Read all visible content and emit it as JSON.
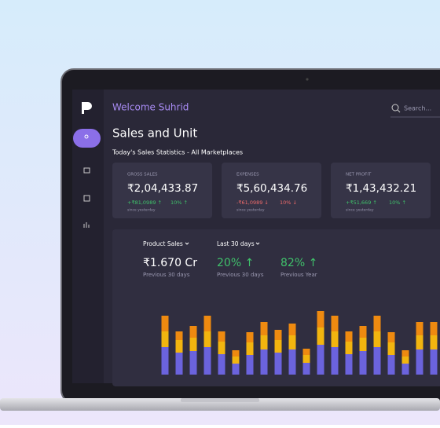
{
  "header": {
    "welcome": "Welcome Suhrid",
    "search_placeholder": "Search..."
  },
  "page": {
    "title": "Sales and Unit",
    "subtitle": "Today's Sales Statistics - All Marketplaces"
  },
  "cards": [
    {
      "label": "GROSS SALES",
      "value": "₹2,04,433.87",
      "change": "+₹81,0989 ↑",
      "percent": "10% ↑",
      "note": "since yesterday"
    },
    {
      "label": "EXPENSES",
      "value": "₹5,60,434.76",
      "change": "-₹61,0989 ↓",
      "percent": "10% ↓",
      "note": "since yesterday"
    },
    {
      "label": "NET PROFIT",
      "value": "₹1,43,432.21",
      "change": "+₹51,669 ↑",
      "percent": "10% ↑",
      "note": "since yesterday"
    }
  ],
  "summary": {
    "filters": [
      "Product Sales",
      "Last 30 days"
    ],
    "stats": [
      {
        "value": "₹1.670 Cr",
        "caption": "Previous 30 days"
      },
      {
        "value": "20% ↑",
        "caption": "Previous 30 days"
      },
      {
        "value": "82% ↑",
        "caption": "Previous Year"
      }
    ]
  },
  "chart_data": {
    "type": "bar",
    "stacked": true,
    "categories": [
      null,
      null,
      null,
      null,
      null,
      null,
      null,
      null,
      null,
      null,
      null,
      null,
      null,
      null,
      null,
      null,
      null,
      null,
      null,
      null
    ],
    "series": [
      {
        "color": "#6b63dd",
        "values": [
          35,
          28,
          30,
          35,
          26,
          14,
          25,
          32,
          28,
          32,
          15,
          38,
          35,
          26,
          30,
          35,
          25,
          14,
          32,
          32
        ]
      },
      {
        "color": "#f2b50f",
        "values": [
          20,
          16,
          17,
          20,
          16,
          9,
          16,
          18,
          16,
          18,
          10,
          22,
          20,
          16,
          17,
          20,
          16,
          9,
          18,
          18
        ]
      },
      {
        "color": "#ee8a10",
        "values": [
          20,
          11,
          15,
          20,
          13,
          8,
          13,
          17,
          13,
          15,
          8,
          21,
          20,
          13,
          15,
          20,
          13,
          8,
          17,
          17
        ]
      }
    ],
    "ylim": [
      0,
      100
    ]
  }
}
